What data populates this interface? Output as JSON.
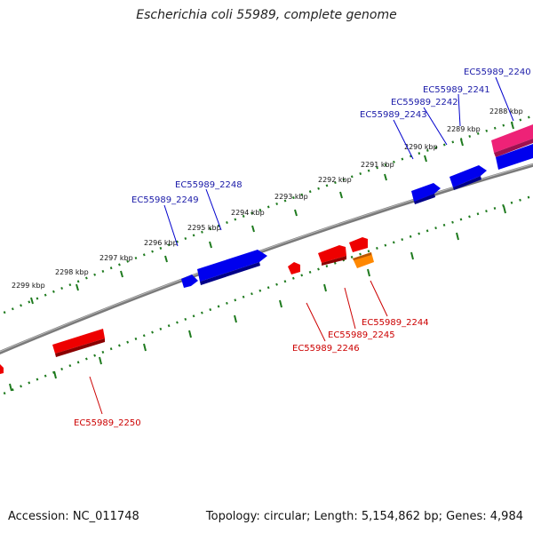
{
  "header": {
    "title": "Escherichia coli 55989, complete genome"
  },
  "footer": {
    "accession": "Accession: NC_011748",
    "stats": "Topology: circular; Length: 5,154,862 bp; Genes: 4,984"
  },
  "map": {
    "colors": {
      "backbone": "#7a7a7a",
      "tick": "#1e7a1e",
      "forward_gene": "#0000ee",
      "reverse_gene": "#ee0000",
      "hypothetical_gene": "#ff8800",
      "rna_gene": "#ee2277",
      "forward_label": "#1a1aa8",
      "reverse_label": "#cc0000"
    },
    "outer_scale_ticks": [
      "2288 kbp",
      "2289 kbp",
      "2290 kbp",
      "2291 kbp",
      "2292 kbp",
      "2293 kbp",
      "2294 kbp",
      "2295 kbp",
      "2296 kbp",
      "2297 kbp",
      "2298 kbp",
      "2299 kbp"
    ],
    "forward_genes": [
      {
        "label": "EC55989_2240"
      },
      {
        "label": "EC55989_2241"
      },
      {
        "label": "EC55989_2242"
      },
      {
        "label": "EC55989_2243"
      },
      {
        "label": "EC55989_2248"
      },
      {
        "label": "EC55989_2249"
      }
    ],
    "reverse_genes": [
      {
        "label": "EC55989_2244"
      },
      {
        "label": "EC55989_2245"
      },
      {
        "label": "EC55989_2246"
      },
      {
        "label": "EC55989_2250"
      }
    ]
  }
}
